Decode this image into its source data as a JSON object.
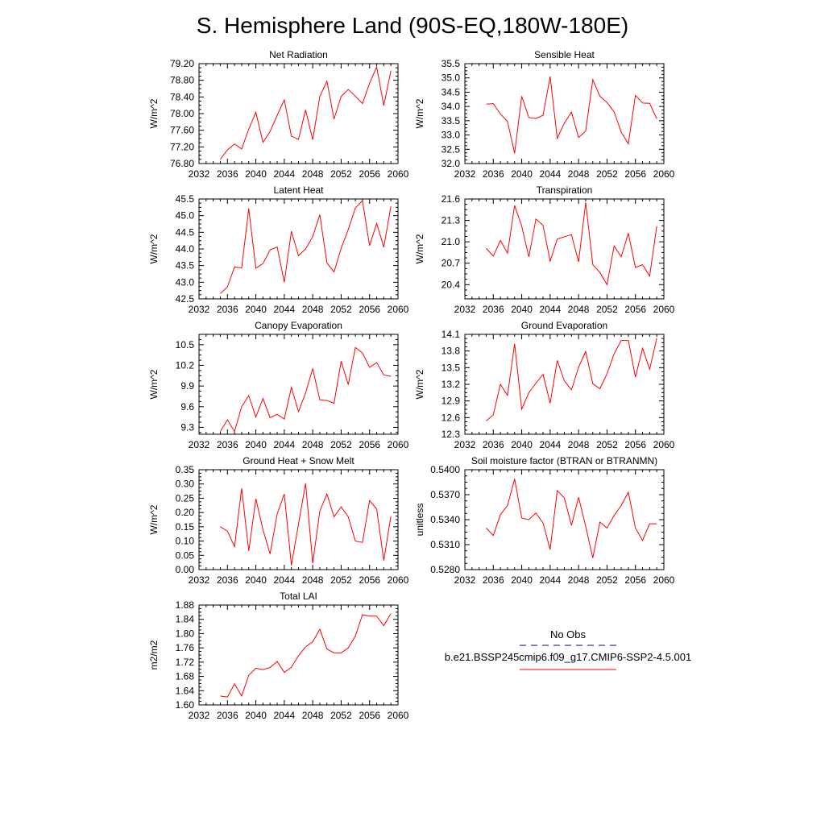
{
  "page_title": "S. Hemisphere Land (90S-EQ,180W-180E)",
  "colors": {
    "model_line": "#ff0000",
    "obs_line": "#000080",
    "axis": "#000000"
  },
  "legend": {
    "obs_label": "No Obs",
    "model_label": "b.e21.BSSP245cmip6.f09_g17.CMIP6-SSP2-4.5.001"
  },
  "chart_data": [
    {
      "type": "line",
      "title": "Net Radiation",
      "ylabel": "W/m^2",
      "xlim": [
        2032,
        2060
      ],
      "ylim": [
        76.8,
        79.2
      ],
      "xticks": [
        "2032",
        "2036",
        "2040",
        "2044",
        "2048",
        "2052",
        "2056",
        "2060"
      ],
      "yticks": [
        "76.80",
        "77.20",
        "77.60",
        "78.00",
        "78.40",
        "78.80",
        "79.20"
      ],
      "x": [
        2035,
        2036,
        2037,
        2038,
        2039,
        2040,
        2041,
        2042,
        2043,
        2044,
        2045,
        2046,
        2047,
        2048,
        2049,
        2050,
        2051,
        2052,
        2053,
        2054,
        2055,
        2056,
        2057,
        2058,
        2059
      ],
      "series": [
        {
          "values": [
            76.9,
            77.13,
            77.27,
            77.15,
            77.63,
            78.03,
            77.31,
            77.57,
            77.96,
            78.33,
            77.46,
            77.38,
            78.09,
            77.37,
            78.41,
            78.78,
            77.87,
            78.41,
            78.58,
            78.42,
            78.24,
            78.73,
            79.12,
            78.19,
            79.03
          ]
        }
      ]
    },
    {
      "type": "line",
      "title": "Sensible Heat",
      "ylabel": "W/m^2",
      "xlim": [
        2032,
        2060
      ],
      "ylim": [
        32.0,
        35.5
      ],
      "xticks": [
        "2032",
        "2036",
        "2040",
        "2044",
        "2048",
        "2052",
        "2056",
        "2060"
      ],
      "yticks": [
        "32.0",
        "32.5",
        "33.0",
        "33.5",
        "34.0",
        "34.5",
        "35.0",
        "35.5"
      ],
      "x": [
        2035,
        2036,
        2037,
        2038,
        2039,
        2040,
        2041,
        2042,
        2043,
        2044,
        2045,
        2046,
        2047,
        2048,
        2049,
        2050,
        2051,
        2052,
        2053,
        2054,
        2055,
        2056,
        2057,
        2058,
        2059
      ],
      "series": [
        {
          "values": [
            34.08,
            34.1,
            33.74,
            33.47,
            32.36,
            34.36,
            33.61,
            33.58,
            33.69,
            35.05,
            32.88,
            33.42,
            33.8,
            32.91,
            33.14,
            34.94,
            34.36,
            34.14,
            33.81,
            33.1,
            32.69,
            34.39,
            34.12,
            34.11,
            33.57
          ]
        }
      ]
    },
    {
      "type": "line",
      "title": "Latent Heat",
      "ylabel": "W/m^2",
      "xlim": [
        2032,
        2060
      ],
      "ylim": [
        42.5,
        45.5
      ],
      "xticks": [
        "2032",
        "2036",
        "2040",
        "2044",
        "2048",
        "2052",
        "2056",
        "2060"
      ],
      "yticks": [
        "42.5",
        "43.0",
        "43.5",
        "44.0",
        "44.5",
        "45.0",
        "45.5"
      ],
      "x": [
        2035,
        2036,
        2037,
        2038,
        2039,
        2040,
        2041,
        2042,
        2043,
        2044,
        2045,
        2046,
        2047,
        2048,
        2049,
        2050,
        2051,
        2052,
        2053,
        2054,
        2055,
        2056,
        2057,
        2058,
        2059
      ],
      "series": [
        {
          "values": [
            42.66,
            42.86,
            43.46,
            43.43,
            45.21,
            43.42,
            43.56,
            43.97,
            44.06,
            43.0,
            44.53,
            43.8,
            44.0,
            44.37,
            45.03,
            43.58,
            43.31,
            44.02,
            44.58,
            45.23,
            45.45,
            44.1,
            44.77,
            44.05,
            45.28
          ]
        }
      ]
    },
    {
      "type": "line",
      "title": "Transpiration",
      "ylabel": "W/m^2",
      "xlim": [
        2032,
        2060
      ],
      "ylim": [
        20.2,
        21.6
      ],
      "xticks": [
        "2032",
        "2036",
        "2040",
        "2044",
        "2048",
        "2052",
        "2056",
        "2060"
      ],
      "yticks": [
        "20.4",
        "20.7",
        "21.0",
        "21.3",
        "21.6"
      ],
      "x": [
        2035,
        2036,
        2037,
        2038,
        2039,
        2040,
        2041,
        2042,
        2043,
        2044,
        2045,
        2046,
        2047,
        2048,
        2049,
        2050,
        2051,
        2052,
        2053,
        2054,
        2055,
        2056,
        2057,
        2058,
        2059
      ],
      "series": [
        {
          "values": [
            20.91,
            20.8,
            21.02,
            20.84,
            21.51,
            21.22,
            20.79,
            21.32,
            21.23,
            20.73,
            21.04,
            21.07,
            21.1,
            20.72,
            21.55,
            20.68,
            20.57,
            20.4,
            20.94,
            20.79,
            21.12,
            20.64,
            20.68,
            20.52,
            21.22
          ]
        }
      ]
    },
    {
      "type": "line",
      "title": "Canopy Evaporation",
      "ylabel": "W/m^2",
      "xlim": [
        2032,
        2060
      ],
      "ylim": [
        9.2,
        10.65
      ],
      "xticks": [
        "2032",
        "2036",
        "2040",
        "2044",
        "2048",
        "2052",
        "2056",
        "2060"
      ],
      "yticks": [
        "9.3",
        "9.6",
        "9.9",
        "10.2",
        "10.5"
      ],
      "x": [
        2035,
        2036,
        2037,
        2038,
        2039,
        2040,
        2041,
        2042,
        2043,
        2044,
        2045,
        2046,
        2047,
        2048,
        2049,
        2050,
        2051,
        2052,
        2053,
        2054,
        2055,
        2056,
        2057,
        2058,
        2059
      ],
      "series": [
        {
          "values": [
            9.24,
            9.41,
            9.24,
            9.6,
            9.76,
            9.45,
            9.72,
            9.44,
            9.49,
            9.42,
            9.88,
            9.53,
            9.8,
            10.15,
            9.7,
            9.69,
            9.65,
            10.26,
            9.92,
            10.46,
            10.38,
            10.17,
            10.24,
            10.06,
            10.04
          ]
        }
      ]
    },
    {
      "type": "line",
      "title": "Ground Evaporation",
      "ylabel": "W/m^2",
      "xlim": [
        2032,
        2060
      ],
      "ylim": [
        12.3,
        14.1
      ],
      "xticks": [
        "2032",
        "2036",
        "2040",
        "2044",
        "2048",
        "2052",
        "2056",
        "2060"
      ],
      "yticks": [
        "12.3",
        "12.6",
        "12.9",
        "13.2",
        "13.5",
        "13.8",
        "14.1"
      ],
      "x": [
        2035,
        2036,
        2037,
        2038,
        2039,
        2040,
        2041,
        2042,
        2043,
        2044,
        2045,
        2046,
        2047,
        2048,
        2049,
        2050,
        2051,
        2052,
        2053,
        2054,
        2055,
        2056,
        2057,
        2058,
        2059
      ],
      "series": [
        {
          "values": [
            12.54,
            12.65,
            13.2,
            13.0,
            13.93,
            12.75,
            13.05,
            13.22,
            13.38,
            12.86,
            13.63,
            13.26,
            13.1,
            13.51,
            13.79,
            13.21,
            13.12,
            13.39,
            13.75,
            13.99,
            13.99,
            13.33,
            13.85,
            13.47,
            14.03
          ]
        }
      ]
    },
    {
      "type": "line",
      "title": "Ground Heat + Snow Melt",
      "ylabel": "W/m^2",
      "xlim": [
        2032,
        2060
      ],
      "ylim": [
        0.0,
        0.35
      ],
      "xticks": [
        "2032",
        "2036",
        "2040",
        "2044",
        "2048",
        "2052",
        "2056",
        "2060"
      ],
      "yticks": [
        "0.00",
        "0.05",
        "0.10",
        "0.15",
        "0.20",
        "0.25",
        "0.30",
        "0.35"
      ],
      "x": [
        2035,
        2036,
        2037,
        2038,
        2039,
        2040,
        2041,
        2042,
        2043,
        2044,
        2045,
        2046,
        2047,
        2048,
        2049,
        2050,
        2051,
        2052,
        2053,
        2054,
        2055,
        2056,
        2057,
        2058,
        2059
      ],
      "series": [
        {
          "values": [
            0.15,
            0.135,
            0.08,
            0.285,
            0.065,
            0.248,
            0.14,
            0.055,
            0.195,
            0.265,
            0.015,
            0.16,
            0.302,
            0.022,
            0.205,
            0.265,
            0.185,
            0.22,
            0.185,
            0.1,
            0.095,
            0.242,
            0.212,
            0.032,
            0.187
          ]
        }
      ]
    },
    {
      "type": "line",
      "title": "Soil moisture factor (BTRAN or BTRANMN)",
      "ylabel": "unitless",
      "xlim": [
        2032,
        2060
      ],
      "ylim": [
        0.528,
        0.54
      ],
      "xticks": [
        "2032",
        "2036",
        "2040",
        "2044",
        "2048",
        "2052",
        "2056",
        "2060"
      ],
      "yticks": [
        "0.5280",
        "0.5310",
        "0.5340",
        "0.5370",
        "0.5400"
      ],
      "x": [
        2035,
        2036,
        2037,
        2038,
        2039,
        2040,
        2041,
        2042,
        2043,
        2044,
        2045,
        2046,
        2047,
        2048,
        2049,
        2050,
        2051,
        2052,
        2053,
        2054,
        2055,
        2056,
        2057,
        2058,
        2059
      ],
      "series": [
        {
          "values": [
            0.533,
            0.5321,
            0.5346,
            0.5357,
            0.5389,
            0.5342,
            0.534,
            0.5348,
            0.5336,
            0.5304,
            0.5375,
            0.5366,
            0.5333,
            0.5367,
            0.5332,
            0.5294,
            0.5337,
            0.533,
            0.5345,
            0.5357,
            0.5373,
            0.533,
            0.5315,
            0.5335,
            0.5335
          ]
        }
      ]
    },
    {
      "type": "line",
      "title": "Total LAI",
      "ylabel": "m2/m2",
      "xlim": [
        2032,
        2060
      ],
      "ylim": [
        1.6,
        1.88
      ],
      "xticks": [
        "2032",
        "2036",
        "2040",
        "2044",
        "2048",
        "2052",
        "2056",
        "2060"
      ],
      "yticks": [
        "1.60",
        "1.64",
        "1.68",
        "1.72",
        "1.76",
        "1.80",
        "1.84",
        "1.88"
      ],
      "x": [
        2035,
        2036,
        2037,
        2038,
        2039,
        2040,
        2041,
        2042,
        2043,
        2044,
        2045,
        2046,
        2047,
        2048,
        2049,
        2050,
        2051,
        2052,
        2053,
        2054,
        2055,
        2056,
        2057,
        2058,
        2059
      ],
      "series": [
        {
          "values": [
            1.625,
            1.622,
            1.659,
            1.625,
            1.683,
            1.703,
            1.699,
            1.705,
            1.722,
            1.691,
            1.706,
            1.738,
            1.763,
            1.777,
            1.812,
            1.757,
            1.746,
            1.746,
            1.76,
            1.793,
            1.853,
            1.849,
            1.849,
            1.822,
            1.856
          ]
        }
      ]
    }
  ]
}
